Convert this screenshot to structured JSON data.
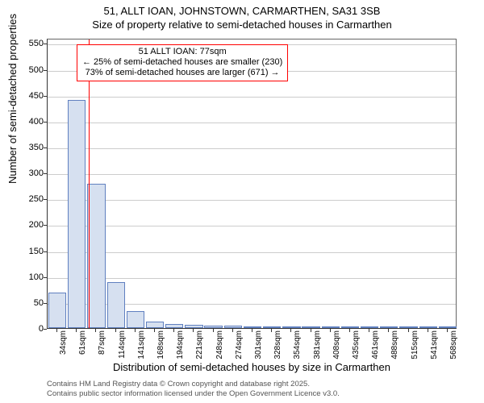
{
  "chart": {
    "type": "histogram",
    "title_line1": "51, ALLT IOAN, JOHNSTOWN, CARMARTHEN, SA31 3SB",
    "title_line2": "Size of property relative to semi-detached houses in Carmarthen",
    "title_fontsize": 13,
    "ylabel": "Number of semi-detached properties",
    "xlabel": "Distribution of semi-detached houses by size in Carmarthen",
    "label_fontsize": 13,
    "ylim": [
      0,
      560
    ],
    "yticks": [
      0,
      50,
      100,
      150,
      200,
      250,
      300,
      350,
      400,
      450,
      500,
      550
    ],
    "xticks": [
      "34sqm",
      "61sqm",
      "87sqm",
      "114sqm",
      "141sqm",
      "168sqm",
      "194sqm",
      "221sqm",
      "248sqm",
      "274sqm",
      "301sqm",
      "328sqm",
      "354sqm",
      "381sqm",
      "408sqm",
      "435sqm",
      "461sqm",
      "488sqm",
      "515sqm",
      "541sqm",
      "568sqm"
    ],
    "bar_values": [
      68,
      440,
      278,
      88,
      32,
      12,
      8,
      6,
      4,
      4,
      3,
      2,
      2,
      1,
      1,
      1,
      1,
      1,
      1,
      1,
      1
    ],
    "bar_fill": "#d6e0f0",
    "bar_stroke": "#6080c0",
    "bar_width": 0.92,
    "background_color": "#ffffff",
    "grid_color": "#cccccc",
    "axis_color": "#333333",
    "marker": {
      "color": "#ff0000",
      "x_value": 77,
      "callout_title": "51 ALLT IOAN: 77sqm",
      "callout_line1": "← 25% of semi-detached houses are smaller (230)",
      "callout_line2": "73% of semi-detached houses are larger (671) →"
    },
    "footer_line1": "Contains HM Land Registry data © Crown copyright and database right 2025.",
    "footer_line2": "Contains public sector information licensed under the Open Government Licence v3.0."
  }
}
